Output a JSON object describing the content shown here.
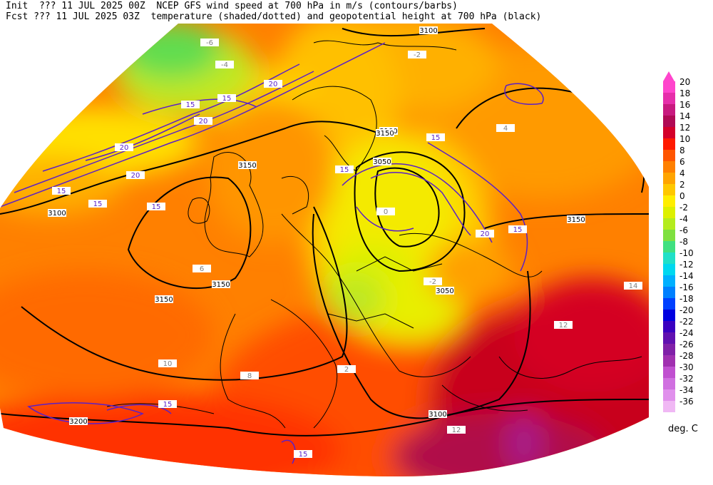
{
  "header": {
    "line1": "Init  ??? 11 JUL 2025 00Z  NCEP GFS wind speed at 700 hPa in m/s (contours/barbs)",
    "line2": "Fcst ??? 11 JUL 2025 03Z  temperature (shaded/dotted) and geopotential height at 700 hPa (black)"
  },
  "colorbar": {
    "units": "deg. C",
    "levels": [
      {
        "label": "20",
        "color": "#ff44cc"
      },
      {
        "label": "18",
        "color": "#e62eaa"
      },
      {
        "label": "16",
        "color": "#c8197f"
      },
      {
        "label": "14",
        "color": "#b00a55"
      },
      {
        "label": "12",
        "color": "#d4002a"
      },
      {
        "label": "10",
        "color": "#ff1a00"
      },
      {
        "label": "8",
        "color": "#ff5500"
      },
      {
        "label": "6",
        "color": "#ff8000"
      },
      {
        "label": "4",
        "color": "#ffa400"
      },
      {
        "label": "2",
        "color": "#ffc800"
      },
      {
        "label": "0",
        "color": "#ffee00"
      },
      {
        "label": "-2",
        "color": "#ddf000"
      },
      {
        "label": "-4",
        "color": "#b4ec1e"
      },
      {
        "label": "-6",
        "color": "#7fe040"
      },
      {
        "label": "-8",
        "color": "#40e080"
      },
      {
        "label": "-10",
        "color": "#20e0c8"
      },
      {
        "label": "-12",
        "color": "#00d8f0"
      },
      {
        "label": "-14",
        "color": "#00b0ff"
      },
      {
        "label": "-16",
        "color": "#0080ff"
      },
      {
        "label": "-18",
        "color": "#0040ff"
      },
      {
        "label": "-20",
        "color": "#0000e0"
      },
      {
        "label": "-22",
        "color": "#3a00c0"
      },
      {
        "label": "-24",
        "color": "#6010b0"
      },
      {
        "label": "-26",
        "color": "#8020a8"
      },
      {
        "label": "-28",
        "color": "#a030b0"
      },
      {
        "label": "-30",
        "color": "#c050d0"
      },
      {
        "label": "-32",
        "color": "#d070e0"
      },
      {
        "label": "-34",
        "color": "#e090ec"
      },
      {
        "label": "-36",
        "color": "#f0b8f4"
      }
    ]
  },
  "map": {
    "height_labels": [
      "3100",
      "3150",
      "3100",
      "3150",
      "3150",
      "3150",
      "3100",
      "3050",
      "3050",
      "3150",
      "3200",
      "3100"
    ],
    "wind_labels": [
      "15",
      "20",
      "15",
      "20",
      "20",
      "15",
      "15",
      "20",
      "15",
      "20",
      "15",
      "15",
      "15",
      "15",
      "15"
    ],
    "temp_labels": [
      "-6",
      "-4",
      "-2",
      "0",
      "2",
      "4",
      "6",
      "8",
      "10",
      "12",
      "-2",
      "12",
      "14"
    ]
  }
}
